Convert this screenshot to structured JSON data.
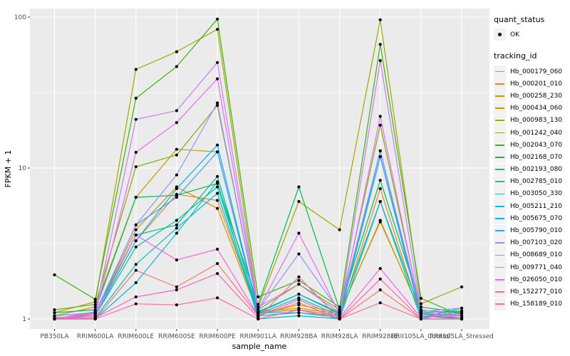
{
  "figure": {
    "xlabel": "sample_name",
    "ylabel": "FPKM + 1"
  },
  "legend": {
    "quant_status_title": "quant_status",
    "ok_label": "OK",
    "tracking_id_title": "tracking_id"
  },
  "chart_data": {
    "type": "line",
    "title": "",
    "xlabel": "sample_name",
    "ylabel": "FPKM + 1",
    "y_scale": "log10",
    "y_ticks": [
      1,
      10,
      100
    ],
    "y_minor_ticks": [
      3.16,
      31.6
    ],
    "ylim": [
      0.86,
      114
    ],
    "grid": "on",
    "legend_position": "right",
    "panel_background": "#EBEBEB",
    "gridline_color": "#FFFFFF",
    "point_color": "#000000",
    "categories": [
      "PB350LA",
      "RRIM600LA",
      "RRIM600LE",
      "RRIM600SE",
      "RRIM600PE",
      "RRIM901LA",
      "RRIM928BA",
      "RRIM928LA",
      "RRIM928LE",
      "RRII105LA_Control",
      "RRII105LA_Stressed"
    ],
    "series": [
      {
        "name": "Hb_000179_060",
        "color": "#F8766D",
        "values": [
          1.0,
          1.0,
          2.1,
          1.63,
          2.33,
          1.05,
          1.28,
          1.0,
          1.56,
          1.0,
          1.0
        ]
      },
      {
        "name": "Hb_000201_010",
        "color": "#E88526",
        "values": [
          1.0,
          1.05,
          3.3,
          6.7,
          6.1,
          1.1,
          1.15,
          1.05,
          7.3,
          1.05,
          1.0
        ]
      },
      {
        "name": "Hb_000258_230",
        "color": "#D89000",
        "values": [
          1.0,
          1.1,
          3.9,
          7.5,
          5.4,
          1.08,
          1.24,
          1.1,
          4.4,
          1.1,
          1.05
        ]
      },
      {
        "name": "Hb_000434_060",
        "color": "#C09B00",
        "values": [
          1.05,
          1.2,
          6.4,
          13.3,
          12.8,
          1.12,
          1.18,
          1.08,
          4.5,
          1.08,
          1.0
        ]
      },
      {
        "name": "Hb_000983_130",
        "color": "#A3A500",
        "values": [
          1.1,
          1.3,
          45,
          59,
          83,
          1.2,
          6.0,
          3.9,
          96,
          1.26,
          1.63
        ]
      },
      {
        "name": "Hb_001242_040",
        "color": "#7CAE00",
        "values": [
          1.15,
          1.25,
          10.2,
          12.2,
          26,
          1.15,
          1.7,
          1.15,
          19.2,
          1.14,
          1.09
        ]
      },
      {
        "name": "Hb_002043_070",
        "color": "#39B600",
        "values": [
          1.96,
          1.35,
          29,
          47,
          97,
          1.4,
          1.8,
          1.2,
          66,
          1.37,
          1.05
        ]
      },
      {
        "name": "Hb_002168_070",
        "color": "#00BB4E",
        "values": [
          1.1,
          1.15,
          6.4,
          6.6,
          7.9,
          1.25,
          7.5,
          1.15,
          8.3,
          1.2,
          1.1
        ]
      },
      {
        "name": "Hb_002193_080",
        "color": "#00BF7D",
        "values": [
          1.05,
          1.1,
          3.6,
          4.2,
          8.8,
          1.1,
          1.46,
          1.1,
          6.0,
          1.1,
          1.13
        ]
      },
      {
        "name": "Hb_002785_010",
        "color": "#00C1A3",
        "values": [
          1.0,
          1.05,
          3.0,
          4.5,
          7.5,
          1.08,
          1.38,
          1.05,
          11.9,
          1.05,
          1.0
        ]
      },
      {
        "name": "Hb_003050_330",
        "color": "#00BFC4",
        "values": [
          1.0,
          1.02,
          2.3,
          4.0,
          6.8,
          1.05,
          1.1,
          1.02,
          13.0,
          1.02,
          1.18
        ]
      },
      {
        "name": "Hb_005211_210",
        "color": "#00BAE0",
        "values": [
          1.0,
          1.0,
          1.74,
          3.7,
          8.1,
          1.0,
          1.05,
          1.0,
          6.0,
          1.0,
          1.13
        ]
      },
      {
        "name": "Hb_005675_070",
        "color": "#00B0F6",
        "values": [
          1.02,
          1.05,
          3.3,
          7.3,
          14.2,
          1.12,
          1.46,
          1.08,
          13.0,
          1.08,
          1.05
        ]
      },
      {
        "name": "Hb_005790_010",
        "color": "#35A2FF",
        "values": [
          1.0,
          1.08,
          4.2,
          6.4,
          12.8,
          1.1,
          1.1,
          1.05,
          11.9,
          1.05,
          1.02
        ]
      },
      {
        "name": "Hb_007103_020",
        "color": "#9590FF",
        "values": [
          1.05,
          1.1,
          4.2,
          9.0,
          27,
          1.15,
          2.7,
          1.12,
          13.0,
          1.12,
          1.18
        ]
      },
      {
        "name": "Hb_008689_010",
        "color": "#C77CFF",
        "values": [
          1.0,
          1.12,
          21,
          24,
          50,
          1.2,
          1.7,
          1.1,
          51.5,
          1.15,
          1.05
        ]
      },
      {
        "name": "Hb_009771_040",
        "color": "#E76BF3",
        "values": [
          1.0,
          1.08,
          12.7,
          20,
          39,
          1.15,
          3.7,
          1.08,
          22,
          1.1,
          1.02
        ]
      },
      {
        "name": "Hb_026050_010",
        "color": "#FA62DB",
        "values": [
          1.0,
          1.05,
          3.6,
          2.46,
          2.9,
          1.05,
          1.34,
          1.02,
          2.16,
          1.02,
          1.09
        ]
      },
      {
        "name": "Hb_152277_010",
        "color": "#FF62BC",
        "values": [
          1.0,
          1.02,
          1.4,
          1.56,
          2.0,
          1.02,
          1.9,
          1.0,
          1.84,
          1.0,
          1.0
        ]
      },
      {
        "name": "Hb_158189_010",
        "color": "#FF6A98",
        "values": [
          1.0,
          1.0,
          1.26,
          1.24,
          1.38,
          1.0,
          1.15,
          1.0,
          1.28,
          1.0,
          1.0
        ]
      }
    ]
  }
}
